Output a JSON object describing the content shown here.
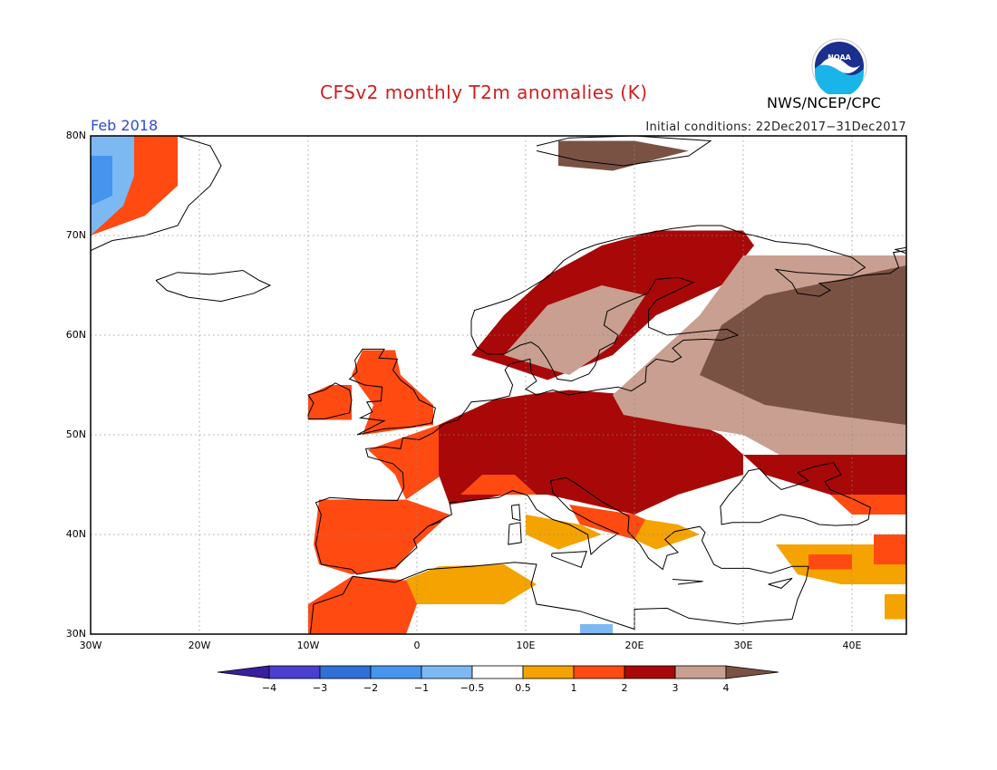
{
  "title": "CFSv2 monthly T2m anomalies (K)",
  "period": "Feb 2018",
  "initial_conditions": "Initial conditions: 22Dec2017−31Dec2017",
  "agency": "NWS/NCEP/CPC",
  "logo_text": "NOAA",
  "map": {
    "lat_labels": [
      "80N",
      "70N",
      "60N",
      "50N",
      "40N",
      "30N"
    ],
    "lon_labels": [
      "30W",
      "20W",
      "10W",
      "0",
      "10E",
      "20E",
      "30E",
      "40E"
    ],
    "colors": {
      "lt_-4": "#3a1ea0",
      "-4_-3": "#4b3fcf",
      "-3_-2": "#2f6fd6",
      "-2_-1": "#4595ee",
      "-1_-0.5": "#7cb9f3",
      "-0.5_0.5": "#ffffff",
      "0.5_1": "#f5a300",
      "1_2": "#ff4a12",
      "2_3": "#a80808",
      "3_4": "#c89f90",
      "gt_4": "#7a5244"
    }
  },
  "colorbar": {
    "tick_labels": [
      "−4",
      "−3",
      "−2",
      "−1",
      "−0.5",
      "0.5",
      "1",
      "2",
      "3",
      "4"
    ],
    "colors": [
      "#3a1ea0",
      "#4b3fcf",
      "#2f6fd6",
      "#4595ee",
      "#7cb9f3",
      "#ffffff",
      "#f5a300",
      "#ff4a12",
      "#a80808",
      "#c89f90",
      "#7a5244"
    ]
  }
}
